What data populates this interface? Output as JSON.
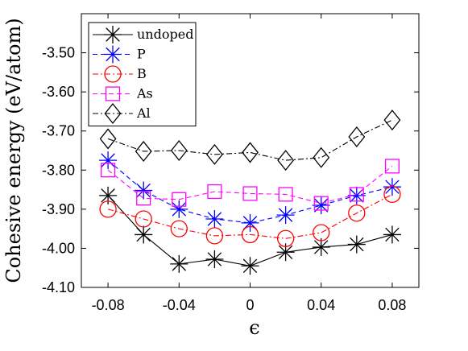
{
  "chart_data": {
    "type": "line",
    "x": [
      -0.08,
      -0.06,
      -0.04,
      -0.02,
      0.0,
      0.02,
      0.04,
      0.06,
      0.08
    ],
    "x_ticks": [
      "-0.08",
      "-0.04",
      "0",
      "0.04",
      "0.08"
    ],
    "y_ticks": [
      "-3.50",
      "-3.60",
      "-3.70",
      "-3.80",
      "-3.90",
      "-4.00",
      "-4.10"
    ],
    "xlabel": "ϵ",
    "ylabel": "Cohesive energy (eV/atom)",
    "xlim": [
      -0.095,
      0.095
    ],
    "ylim": [
      -4.1,
      -3.4
    ],
    "grid": false,
    "legend_position": "top-left",
    "series": [
      {
        "name": "undoped",
        "color": "#000000",
        "dash": "solid",
        "marker": "asterisk",
        "values": [
          -3.865,
          -3.965,
          -4.04,
          -4.028,
          -4.045,
          -4.01,
          -3.997,
          -3.99,
          -3.965
        ]
      },
      {
        "name": "P",
        "color": "#0000ff",
        "dash": "dashed",
        "marker": "asterisk",
        "values": [
          -3.775,
          -3.852,
          -3.9,
          -3.925,
          -3.935,
          -3.915,
          -3.89,
          -3.865,
          -3.843
        ]
      },
      {
        "name": "B",
        "color": "#ff0000",
        "dash": "dashdot",
        "marker": "circle",
        "values": [
          -3.9,
          -3.925,
          -3.95,
          -3.968,
          -3.965,
          -3.975,
          -3.96,
          -3.91,
          -3.862
        ]
      },
      {
        "name": "As",
        "color": "#ff00ff",
        "dash": "dashed",
        "marker": "square",
        "values": [
          -3.8,
          -3.872,
          -3.875,
          -3.855,
          -3.86,
          -3.862,
          -3.885,
          -3.862,
          -3.79
        ]
      },
      {
        "name": "Al",
        "color": "#000000",
        "dash": "dashdot",
        "marker": "diamond",
        "values": [
          -3.72,
          -3.752,
          -3.75,
          -3.76,
          -3.755,
          -3.775,
          -3.768,
          -3.715,
          -3.672
        ]
      }
    ]
  }
}
